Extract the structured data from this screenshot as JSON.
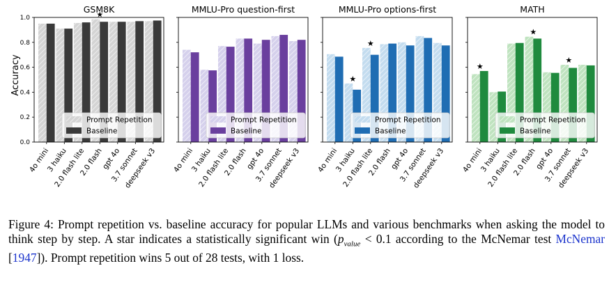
{
  "chart_data": [
    {
      "type": "bar",
      "title": "GSM8K",
      "ylabel": "Accuracy",
      "ylim": [
        0,
        1.0
      ],
      "yticks": [
        "0.0",
        "0.2",
        "0.4",
        "0.6",
        "0.8",
        "1.0"
      ],
      "categories": [
        "4o mini",
        "3 haiku",
        "2.0 flash lite",
        "2.0 flash",
        "gpt 4o",
        "3.7 sonnet",
        "deepseek v3"
      ],
      "series": [
        {
          "name": "Prompt Repetition",
          "values": [
            0.95,
            0.91,
            0.955,
            0.985,
            0.965,
            0.965,
            0.97
          ]
        },
        {
          "name": "Baseline",
          "values": [
            0.95,
            0.91,
            0.96,
            0.965,
            0.965,
            0.97,
            0.975
          ]
        }
      ],
      "stars": [
        3
      ],
      "legend": "lower-right",
      "colors": {
        "repeat": "#d4d4d4",
        "baseline": "#3a3a3a"
      }
    },
    {
      "type": "bar",
      "title": "MMLU-Pro question-first",
      "ylim": [
        0,
        1.0
      ],
      "categories": [
        "4o mini",
        "3 haiku",
        "2.0 flash lite",
        "2.0 flash",
        "gpt 4o",
        "3.7 sonnet",
        "deepseek v3"
      ],
      "series": [
        {
          "name": "Prompt Repetition",
          "values": [
            0.74,
            0.58,
            0.77,
            0.83,
            0.79,
            0.85,
            0.81
          ]
        },
        {
          "name": "Baseline",
          "values": [
            0.72,
            0.575,
            0.765,
            0.83,
            0.82,
            0.86,
            0.82
          ]
        }
      ],
      "stars": [],
      "legend": "lower-right",
      "colors": {
        "repeat": "#d5d0ec",
        "baseline": "#6a3f9e"
      }
    },
    {
      "type": "bar",
      "title": "MMLU-Pro options-first",
      "ylim": [
        0,
        1.0
      ],
      "categories": [
        "4o mini",
        "3 haiku",
        "2.0 flash lite",
        "2.0 flash",
        "gpt 4o",
        "3.7 sonnet",
        "deepseek v3"
      ],
      "series": [
        {
          "name": "Prompt Repetition",
          "values": [
            0.705,
            0.47,
            0.755,
            0.785,
            0.8,
            0.85,
            0.795
          ]
        },
        {
          "name": "Baseline",
          "values": [
            0.685,
            0.42,
            0.7,
            0.79,
            0.775,
            0.835,
            0.775
          ]
        }
      ],
      "stars": [
        1,
        2
      ],
      "legend": "lower-right",
      "colors": {
        "repeat": "#c3dcef",
        "baseline": "#1f6db3"
      }
    },
    {
      "type": "bar",
      "title": "MATH",
      "ylim": [
        0,
        1.0
      ],
      "categories": [
        "4o mini",
        "3 haiku",
        "2.0 flash lite",
        "2.0 flash",
        "gpt 4o",
        "3.7 sonnet",
        "deepseek v3"
      ],
      "series": [
        {
          "name": "Prompt Repetition",
          "values": [
            0.545,
            0.4,
            0.79,
            0.845,
            0.56,
            0.62,
            0.62
          ]
        },
        {
          "name": "Baseline",
          "values": [
            0.57,
            0.405,
            0.795,
            0.83,
            0.555,
            0.595,
            0.615
          ]
        }
      ],
      "stars": [
        0,
        3,
        5
      ],
      "legend": "lower-right",
      "colors": {
        "repeat": "#bfe3bf",
        "baseline": "#1f8a3e"
      }
    }
  ],
  "caption": {
    "lead": "Figure 4: Prompt repetition vs. baseline accuracy for popular LLMs and various benchmarks when asking the model to think step by step. A star indicates a statistically significant win (",
    "math_p": "p",
    "math_sub": "value",
    "math_lt": " < 0.1",
    "mid": " according to the McNemar test ",
    "cite_name": "McNemar",
    "cite_open": " [",
    "cite_year": "1947",
    "cite_close": "]",
    "tail": "). Prompt repetition wins 5 out of 28 tests, with 1 loss."
  }
}
